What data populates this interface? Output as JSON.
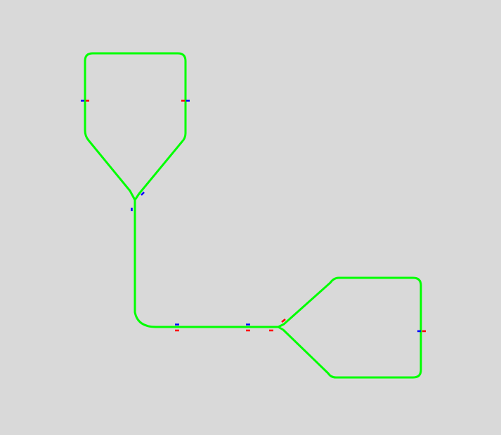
{
  "colors": {
    "background": "#d9d9d9",
    "track": "#00ff00",
    "marker_a": "#0000ff",
    "marker_b": "#ff0000"
  }
}
